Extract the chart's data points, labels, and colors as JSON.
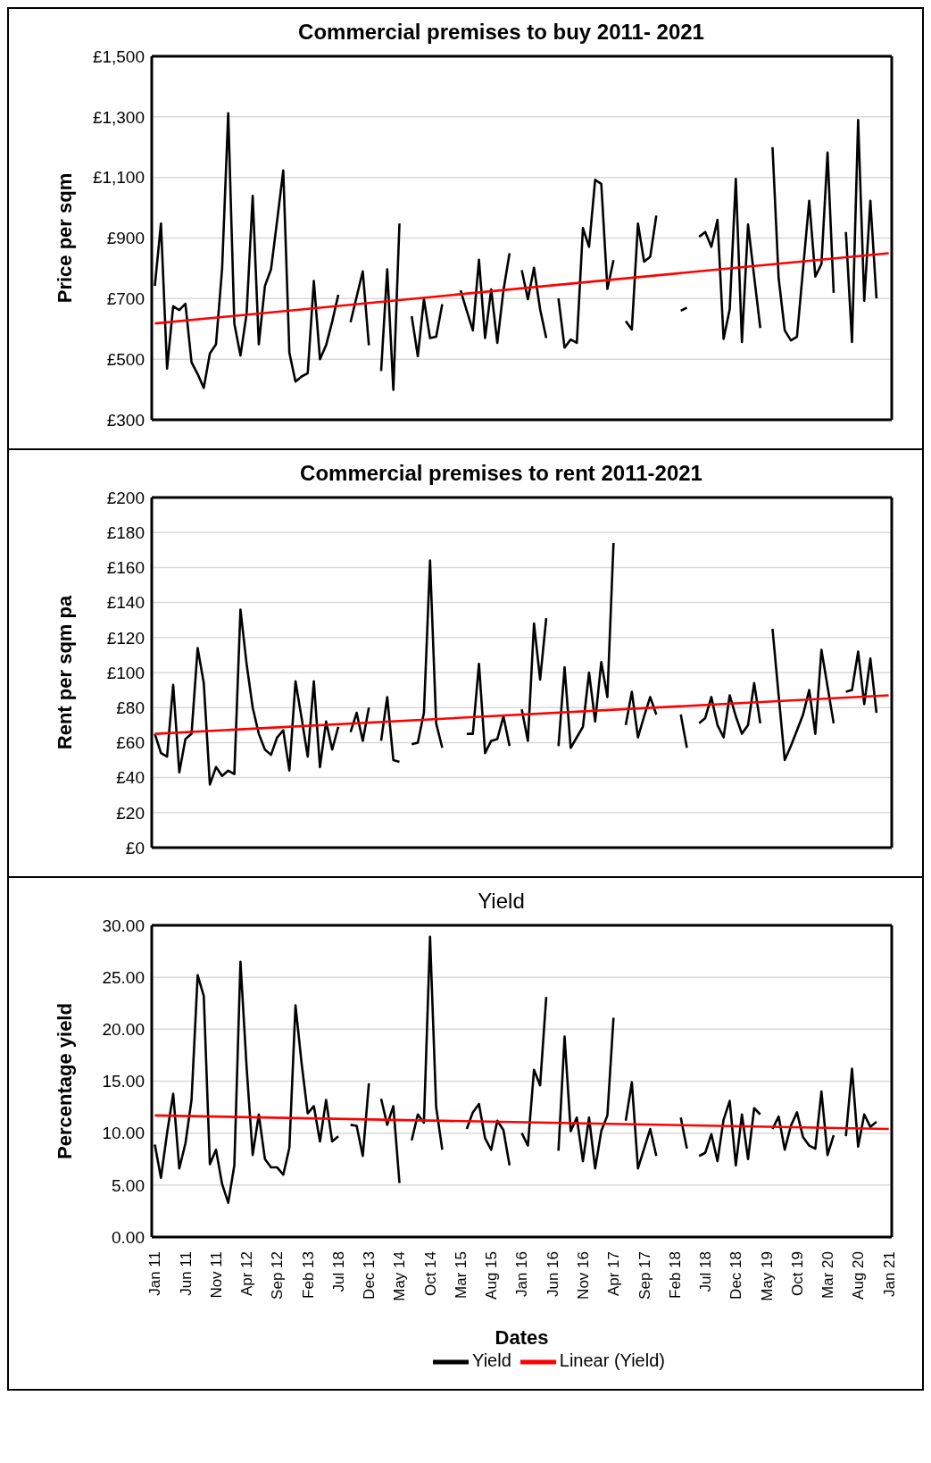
{
  "chart_data": [
    {
      "type": "line",
      "title": "Commercial premises to buy 2011- 2021",
      "ylabel": "Price per sqm",
      "x": [
        "2011-01",
        "2011-02",
        "2011-03",
        "2011-04",
        "2011-05",
        "2011-06",
        "2011-07",
        "2011-08",
        "2011-09",
        "2011-10",
        "2011-11",
        "2011-12",
        "2012-01",
        "2012-02",
        "2012-03",
        "2012-04",
        "2012-05",
        "2012-06",
        "2012-07",
        "2012-08",
        "2012-09",
        "2012-10",
        "2012-11",
        "2012-12",
        "2013-01",
        "2013-02",
        "2013-03",
        "2013-04",
        "2013-05",
        "2013-06",
        "2013-07",
        "2013-08",
        "2013-09",
        "2013-10",
        "2013-11",
        "2013-12",
        "2014-01",
        "2014-02",
        "2014-03",
        "2014-04",
        "2014-05",
        "2014-06",
        "2014-07",
        "2014-08",
        "2014-09",
        "2014-10",
        "2014-11",
        "2014-12",
        "2015-01",
        "2015-02",
        "2015-03",
        "2015-04",
        "2015-05",
        "2015-06",
        "2015-07",
        "2015-08",
        "2015-09",
        "2015-10",
        "2015-11",
        "2015-12",
        "2016-01",
        "2016-02",
        "2016-03",
        "2016-04",
        "2016-05",
        "2016-06",
        "2016-07",
        "2016-08",
        "2016-09",
        "2016-10",
        "2016-11",
        "2016-12",
        "2017-01",
        "2017-02",
        "2017-03",
        "2017-04",
        "2017-05",
        "2017-06",
        "2017-07",
        "2017-08",
        "2017-09",
        "2017-10",
        "2017-11",
        "2017-12",
        "2018-01",
        "2018-02",
        "2018-03",
        "2018-04",
        "2018-05",
        "2018-06",
        "2018-07",
        "2018-08",
        "2018-09",
        "2018-10",
        "2018-11",
        "2018-12",
        "2019-01",
        "2019-02",
        "2019-03",
        "2019-04",
        "2019-05",
        "2019-06",
        "2019-07",
        "2019-08",
        "2019-09",
        "2019-10",
        "2019-11",
        "2019-12",
        "2020-01",
        "2020-02",
        "2020-03",
        "2020-04",
        "2020-05",
        "2020-06",
        "2020-07",
        "2020-08",
        "2020-09",
        "2020-10",
        "2020-11"
      ],
      "xlim": [
        "2010-12-16",
        "2021-01-16"
      ],
      "ylim": [
        300,
        1500
      ],
      "yticks": [
        {
          "value": 300,
          "label": "£300"
        },
        {
          "value": 500,
          "label": "£500"
        },
        {
          "value": 700,
          "label": "£700"
        },
        {
          "value": 900,
          "label": "£900"
        },
        {
          "value": 1100,
          "label": "£1,100"
        },
        {
          "value": 1300,
          "label": "£1,300"
        },
        {
          "value": 1500,
          "label": "£1,500"
        }
      ],
      "tick_labels": "y",
      "grid": "y",
      "series": [
        {
          "color": "#000000",
          "values": [
            742,
            948,
            469,
            675,
            662,
            683,
            490,
            451,
            405,
            519,
            549,
            799,
            1312,
            618,
            512,
            649,
            1039,
            549,
            742,
            797,
            958,
            1123,
            521,
            426,
            443,
            454,
            758,
            500,
            546,
            624,
            713,
            null,
            622,
            706,
            790,
            546,
            null,
            461,
            797,
            399,
            948,
            null,
            642,
            510,
            698,
            570,
            574,
            682,
            null,
            null,
            727,
            660,
            595,
            828,
            570,
            730,
            554,
            727,
            850,
            null,
            794,
            698,
            802,
            665,
            570,
            null,
            701,
            538,
            565,
            554,
            933,
            871,
            1092,
            1079,
            732,
            827,
            null,
            626,
            598,
            948,
            822,
            838,
            974,
            null,
            null,
            null,
            660,
            670,
            null,
            904,
            920,
            871,
            960,
            567,
            665,
            1095,
            557,
            945,
            773,
            603,
            null,
            1200,
            768,
            595,
            562,
            574,
            799,
            1023,
            773,
            814,
            1182,
            719,
            null,
            920,
            557,
            1290,
            693,
            1023,
            701
          ]
        },
        {
          "color": "#ff0000",
          "x": [
            "2011-01",
            "2021-01"
          ],
          "values": [
            618,
            850
          ]
        }
      ]
    },
    {
      "type": "line",
      "title": "Commercial premises to rent 2011-2021",
      "ylabel": "Rent per sqm pa",
      "x": [
        "2011-01",
        "2011-02",
        "2011-03",
        "2011-04",
        "2011-05",
        "2011-06",
        "2011-07",
        "2011-08",
        "2011-09",
        "2011-10",
        "2011-11",
        "2011-12",
        "2012-01",
        "2012-02",
        "2012-03",
        "2012-04",
        "2012-05",
        "2012-06",
        "2012-07",
        "2012-08",
        "2012-09",
        "2012-10",
        "2012-11",
        "2012-12",
        "2013-01",
        "2013-02",
        "2013-03",
        "2013-04",
        "2013-05",
        "2013-06",
        "2013-07",
        "2013-08",
        "2013-09",
        "2013-10",
        "2013-11",
        "2013-12",
        "2014-01",
        "2014-02",
        "2014-03",
        "2014-04",
        "2014-05",
        "2014-06",
        "2014-07",
        "2014-08",
        "2014-09",
        "2014-10",
        "2014-11",
        "2014-12",
        "2015-01",
        "2015-02",
        "2015-03",
        "2015-04",
        "2015-05",
        "2015-06",
        "2015-07",
        "2015-08",
        "2015-09",
        "2015-10",
        "2015-11",
        "2015-12",
        "2016-01",
        "2016-02",
        "2016-03",
        "2016-04",
        "2016-05",
        "2016-06",
        "2016-07",
        "2016-08",
        "2016-09",
        "2016-10",
        "2016-11",
        "2016-12",
        "2017-01",
        "2017-02",
        "2017-03",
        "2017-04",
        "2017-05",
        "2017-06",
        "2017-07",
        "2017-08",
        "2017-09",
        "2017-10",
        "2017-11",
        "2017-12",
        "2018-01",
        "2018-02",
        "2018-03",
        "2018-04",
        "2018-05",
        "2018-06",
        "2018-07",
        "2018-08",
        "2018-09",
        "2018-10",
        "2018-11",
        "2018-12",
        "2019-01",
        "2019-02",
        "2019-03",
        "2019-04",
        "2019-05",
        "2019-06",
        "2019-07",
        "2019-08",
        "2019-09",
        "2019-10",
        "2019-11",
        "2019-12",
        "2020-01",
        "2020-02",
        "2020-03",
        "2020-04",
        "2020-05",
        "2020-06",
        "2020-07",
        "2020-08",
        "2020-09",
        "2020-10",
        "2020-11"
      ],
      "xlim": [
        "2010-12-16",
        "2021-01-16"
      ],
      "ylim": [
        0,
        200
      ],
      "yticks": [
        {
          "value": 0,
          "label": "£0"
        },
        {
          "value": 20,
          "label": "£20"
        },
        {
          "value": 40,
          "label": "£40"
        },
        {
          "value": 60,
          "label": "£60"
        },
        {
          "value": 80,
          "label": "£80"
        },
        {
          "value": 100,
          "label": "£100"
        },
        {
          "value": 120,
          "label": "£120"
        },
        {
          "value": 140,
          "label": "£140"
        },
        {
          "value": 160,
          "label": "£160"
        },
        {
          "value": 180,
          "label": "£180"
        },
        {
          "value": 200,
          "label": "£200"
        }
      ],
      "tick_labels": "y",
      "grid": "y",
      "series": [
        {
          "color": "#000000",
          "values": [
            65,
            54,
            52,
            93,
            43,
            62,
            65,
            114,
            94,
            36,
            46,
            41,
            44,
            42,
            136,
            105,
            80,
            65,
            56,
            53,
            63,
            67,
            44,
            95,
            74,
            52,
            95,
            46,
            72,
            56,
            69,
            null,
            66,
            77,
            61,
            80,
            null,
            61,
            86,
            50,
            49,
            null,
            59,
            60,
            77,
            164,
            71,
            57,
            null,
            null,
            null,
            65,
            65,
            105,
            54,
            61,
            62,
            75,
            58,
            null,
            79,
            61,
            128,
            96,
            131,
            null,
            58,
            103,
            57,
            63,
            69,
            100,
            72,
            106,
            86,
            174,
            null,
            70,
            89,
            63,
            75,
            86,
            76,
            null,
            null,
            null,
            76,
            57,
            null,
            71,
            74,
            86,
            70,
            63,
            87,
            75,
            65,
            70,
            94,
            71,
            null,
            125,
            87,
            50,
            58,
            67,
            76,
            90,
            65,
            113,
            92,
            71,
            null,
            89,
            90,
            112,
            82,
            108,
            77
          ]
        },
        {
          "color": "#ff0000",
          "x": [
            "2011-01",
            "2021-01"
          ],
          "values": [
            65,
            87
          ]
        }
      ]
    },
    {
      "type": "line",
      "title": "Yield",
      "xlabel": "Dates",
      "ylabel": "Percentage yield",
      "x": [
        "2011-01",
        "2011-02",
        "2011-03",
        "2011-04",
        "2011-05",
        "2011-06",
        "2011-07",
        "2011-08",
        "2011-09",
        "2011-10",
        "2011-11",
        "2011-12",
        "2012-01",
        "2012-02",
        "2012-03",
        "2012-04",
        "2012-05",
        "2012-06",
        "2012-07",
        "2012-08",
        "2012-09",
        "2012-10",
        "2012-11",
        "2012-12",
        "2013-01",
        "2013-02",
        "2013-03",
        "2013-04",
        "2013-05",
        "2013-06",
        "2013-07",
        "2013-08",
        "2013-09",
        "2013-10",
        "2013-11",
        "2013-12",
        "2014-01",
        "2014-02",
        "2014-03",
        "2014-04",
        "2014-05",
        "2014-06",
        "2014-07",
        "2014-08",
        "2014-09",
        "2014-10",
        "2014-11",
        "2014-12",
        "2015-01",
        "2015-02",
        "2015-03",
        "2015-04",
        "2015-05",
        "2015-06",
        "2015-07",
        "2015-08",
        "2015-09",
        "2015-10",
        "2015-11",
        "2015-12",
        "2016-01",
        "2016-02",
        "2016-03",
        "2016-04",
        "2016-05",
        "2016-06",
        "2016-07",
        "2016-08",
        "2016-09",
        "2016-10",
        "2016-11",
        "2016-12",
        "2017-01",
        "2017-02",
        "2017-03",
        "2017-04",
        "2017-05",
        "2017-06",
        "2017-07",
        "2017-08",
        "2017-09",
        "2017-10",
        "2017-11",
        "2017-12",
        "2018-01",
        "2018-02",
        "2018-03",
        "2018-04",
        "2018-05",
        "2018-06",
        "2018-07",
        "2018-08",
        "2018-09",
        "2018-10",
        "2018-11",
        "2018-12",
        "2019-01",
        "2019-02",
        "2019-03",
        "2019-04",
        "2019-05",
        "2019-06",
        "2019-07",
        "2019-08",
        "2019-09",
        "2019-10",
        "2019-11",
        "2019-12",
        "2020-01",
        "2020-02",
        "2020-03",
        "2020-04",
        "2020-05",
        "2020-06",
        "2020-07",
        "2020-08",
        "2020-09",
        "2020-10",
        "2020-11"
      ],
      "xlim": [
        "2010-12-16",
        "2021-01-16"
      ],
      "xticks": [
        {
          "value": "2011-01",
          "label": "Jan 11"
        },
        {
          "value": "2011-06",
          "label": "Jun 11"
        },
        {
          "value": "2011-11",
          "label": "Nov 11"
        },
        {
          "value": "2012-04",
          "label": "Apr 12"
        },
        {
          "value": "2012-09",
          "label": "Sep 12"
        },
        {
          "value": "2013-02",
          "label": "Feb 13"
        },
        {
          "value": "2013-07",
          "label": "Jul 18"
        },
        {
          "value": "2013-12",
          "label": "Dec 13"
        },
        {
          "value": "2014-05",
          "label": "May 14"
        },
        {
          "value": "2014-10",
          "label": "Oct 14"
        },
        {
          "value": "2015-03",
          "label": "Mar 15"
        },
        {
          "value": "2015-08",
          "label": "Aug 15"
        },
        {
          "value": "2016-01",
          "label": "Jan 16"
        },
        {
          "value": "2016-06",
          "label": "Jun 16"
        },
        {
          "value": "2016-11",
          "label": "Nov 16"
        },
        {
          "value": "2017-04",
          "label": "Apr 17"
        },
        {
          "value": "2017-09",
          "label": "Sep 17"
        },
        {
          "value": "2018-02",
          "label": "Feb 18"
        },
        {
          "value": "2018-07",
          "label": "Jul 18"
        },
        {
          "value": "2018-12",
          "label": "Dec 18"
        },
        {
          "value": "2019-05",
          "label": "May 19"
        },
        {
          "value": "2019-10",
          "label": "Oct 19"
        },
        {
          "value": "2020-03",
          "label": "Mar 20"
        },
        {
          "value": "2020-08",
          "label": "Aug 20"
        },
        {
          "value": "2021-01",
          "label": "Jan 21"
        }
      ],
      "ylim": [
        0,
        30
      ],
      "yticks": [
        {
          "value": 0,
          "label": "0.00"
        },
        {
          "value": 5,
          "label": "5.00"
        },
        {
          "value": 10,
          "label": "10.00"
        },
        {
          "value": 15,
          "label": "15.00"
        },
        {
          "value": 20,
          "label": "20.00"
        },
        {
          "value": 25,
          "label": "25.00"
        },
        {
          "value": 30,
          "label": "30.00"
        }
      ],
      "grid": "y",
      "legend": "bottom",
      "series": [
        {
          "name": "Yield",
          "color": "#000000",
          "values": [
            8.9,
            5.7,
            10.0,
            13.8,
            6.6,
            9.0,
            13.2,
            25.2,
            23.2,
            7.0,
            8.4,
            5.1,
            3.3,
            6.9,
            26.5,
            16.4,
            7.9,
            11.8,
            7.5,
            6.7,
            6.7,
            6.0,
            8.6,
            22.3,
            16.7,
            11.9,
            12.6,
            9.2,
            13.2,
            9.2,
            9.7,
            null,
            10.8,
            10.7,
            7.8,
            14.8,
            null,
            13.3,
            10.8,
            12.6,
            5.2,
            null,
            9.3,
            11.8,
            11.0,
            28.9,
            12.5,
            8.4,
            null,
            null,
            null,
            10.4,
            12.0,
            12.8,
            9.5,
            8.4,
            11.2,
            10.3,
            6.9,
            null,
            10.0,
            8.8,
            16.1,
            14.6,
            23.1,
            null,
            8.3,
            19.3,
            10.2,
            11.5,
            7.3,
            11.5,
            6.6,
            10.2,
            11.7,
            21.1,
            null,
            11.2,
            14.9,
            6.6,
            8.5,
            10.4,
            7.8,
            null,
            null,
            null,
            11.5,
            8.5,
            null,
            7.8,
            8.1,
            9.9,
            7.3,
            11.3,
            13.1,
            6.9,
            11.8,
            7.5,
            12.4,
            11.8,
            null,
            10.4,
            11.6,
            8.4,
            10.7,
            12.0,
            9.6,
            8.8,
            8.5,
            14.0,
            7.9,
            9.8,
            null,
            9.7,
            16.2,
            8.7,
            11.8,
            10.6,
            11.1
          ]
        },
        {
          "name": "Linear (Yield)",
          "color": "#ff0000",
          "x": [
            "2011-01",
            "2021-01"
          ],
          "values": [
            11.7,
            10.4
          ]
        }
      ]
    }
  ]
}
